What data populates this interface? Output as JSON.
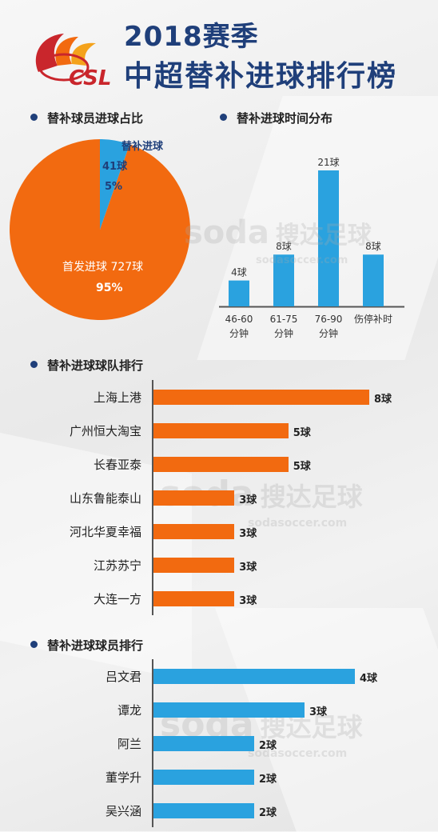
{
  "header": {
    "logo_text": "CSL",
    "title_line1": "2018赛季",
    "title_line2": "中超替补进球排行榜"
  },
  "colors": {
    "orange": "#f26a10",
    "blue": "#2aa2df",
    "navy": "#1f3f7a"
  },
  "sections": {
    "pie_title": "替补球员进球占比",
    "time_title": "替补进球时间分布",
    "team_title": "替补进球球队排行",
    "player_title": "替补进球球员排行"
  },
  "watermark": {
    "cn": "搜达足球",
    "en": "sodasoccer.com",
    "logo": "soda"
  },
  "chart_data": [
    {
      "type": "pie",
      "slices": [
        {
          "label": "首发进球",
          "value": 727,
          "value_label": "727球",
          "percent_label": "95%"
        },
        {
          "label": "替补进球",
          "value": 41,
          "value_label": "41球",
          "percent_label": "5%"
        }
      ]
    },
    {
      "type": "bar",
      "categories": [
        "46-60\n分钟",
        "61-75\n分钟",
        "76-90\n分钟",
        "伤停补时"
      ],
      "values": [
        4,
        8,
        21,
        8
      ],
      "value_labels": [
        "4球",
        "8球",
        "21球",
        "8球"
      ]
    },
    {
      "type": "bar",
      "orientation": "horizontal",
      "categories": [
        "上海上港",
        "广州恒大淘宝",
        "长春亚泰",
        "山东鲁能泰山",
        "河北华夏幸福",
        "江苏苏宁",
        "大连一方"
      ],
      "values": [
        8,
        5,
        5,
        3,
        3,
        3,
        3
      ],
      "value_labels": [
        "8球",
        "5球",
        "5球",
        "3球",
        "3球",
        "3球",
        "3球"
      ]
    },
    {
      "type": "bar",
      "orientation": "horizontal",
      "categories": [
        "吕文君",
        "谭龙",
        "阿兰",
        "董学升",
        "吴兴涵"
      ],
      "values": [
        4,
        3,
        2,
        2,
        2
      ],
      "value_labels": [
        "4球",
        "3球",
        "2球",
        "2球",
        "2球"
      ]
    }
  ]
}
